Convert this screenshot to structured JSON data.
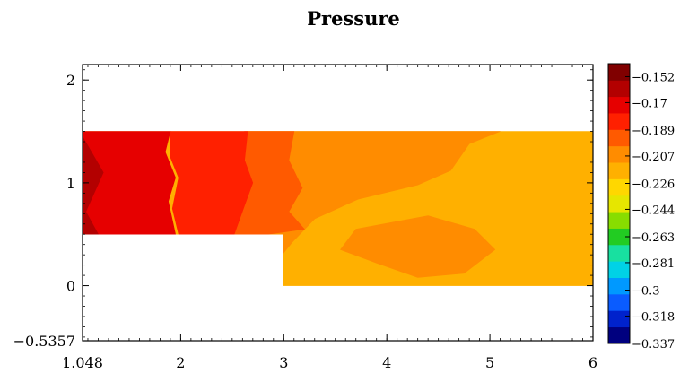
{
  "chart_data": {
    "type": "heatmap",
    "title": "Pressure",
    "xlabel": "",
    "ylabel": "",
    "xlim": [
      1.048,
      6
    ],
    "ylim": [
      -0.5357,
      2.15
    ],
    "x_ticks": [
      {
        "value": 1.048,
        "label": "1.048"
      },
      {
        "value": 2,
        "label": "2"
      },
      {
        "value": 3,
        "label": "3"
      },
      {
        "value": 4,
        "label": "4"
      },
      {
        "value": 5,
        "label": "5"
      },
      {
        "value": 6,
        "label": "6"
      }
    ],
    "y_ticks": [
      {
        "value": -0.5357,
        "label": "−0.5357"
      },
      {
        "value": 0,
        "label": "0"
      },
      {
        "value": 1,
        "label": "1"
      },
      {
        "value": 2,
        "label": "2"
      }
    ],
    "domain": {
      "description_points": [
        [
          1.048,
          0.5
        ],
        [
          3,
          0.5
        ],
        [
          3,
          0
        ],
        [
          6,
          0
        ],
        [
          6,
          1.5
        ],
        [
          1.048,
          1.5
        ]
      ]
    },
    "colorbar": {
      "min": -0.337,
      "max": -0.143,
      "labels": [
        {
          "value": -0.152,
          "label": "−0.152"
        },
        {
          "value": -0.17,
          "label": "−0.17"
        },
        {
          "value": -0.189,
          "label": "−0.189"
        },
        {
          "value": -0.207,
          "label": "−0.207"
        },
        {
          "value": -0.226,
          "label": "−0.226"
        },
        {
          "value": -0.244,
          "label": "−0.244"
        },
        {
          "value": -0.263,
          "label": "−0.263"
        },
        {
          "value": -0.281,
          "label": "−0.281"
        },
        {
          "value": -0.3,
          "label": "−0.3"
        },
        {
          "value": -0.318,
          "label": "−0.318"
        },
        {
          "value": -0.337,
          "label": "−0.337"
        }
      ],
      "colors": [
        "#00007f",
        "#0022cc",
        "#0a5cff",
        "#0099ff",
        "#00d2e6",
        "#18e0a0",
        "#22cc22",
        "#88dd00",
        "#e6e600",
        "#ffd700",
        "#ffb000",
        "#ff8c00",
        "#ff5a00",
        "#ff2000",
        "#e60000",
        "#b30000",
        "#800000"
      ]
    },
    "regions": [
      {
        "value": -0.215,
        "points": [
          [
            3.0,
            0.0
          ],
          [
            6.0,
            0.0
          ],
          [
            6.0,
            1.5
          ],
          [
            1.048,
            1.5
          ],
          [
            1.048,
            0.5
          ],
          [
            3.0,
            0.5
          ]
        ]
      },
      {
        "value": -0.205,
        "points": [
          [
            2.65,
            1.5
          ],
          [
            5.1,
            1.5
          ],
          [
            4.8,
            1.38
          ],
          [
            4.62,
            1.12
          ],
          [
            4.3,
            0.98
          ],
          [
            3.72,
            0.84
          ],
          [
            3.3,
            0.65
          ],
          [
            3.08,
            0.42
          ],
          [
            3.0,
            0.32
          ],
          [
            3.0,
            0.5
          ],
          [
            2.65,
            0.5
          ]
        ]
      },
      {
        "value": -0.205,
        "points": [
          [
            3.7,
            0.55
          ],
          [
            4.4,
            0.68
          ],
          [
            4.85,
            0.55
          ],
          [
            5.05,
            0.35
          ],
          [
            4.75,
            0.12
          ],
          [
            4.3,
            0.08
          ],
          [
            3.9,
            0.22
          ],
          [
            3.55,
            0.35
          ]
        ]
      },
      {
        "value": -0.195,
        "points": [
          [
            2.62,
            1.5
          ],
          [
            3.1,
            1.5
          ],
          [
            3.05,
            1.22
          ],
          [
            3.18,
            0.95
          ],
          [
            3.05,
            0.72
          ],
          [
            3.2,
            0.55
          ],
          [
            2.85,
            0.5
          ],
          [
            2.45,
            0.5
          ]
        ]
      },
      {
        "value": -0.222,
        "points": [
          [
            3.0,
            0.05
          ],
          [
            3.06,
            0.25
          ],
          [
            3.22,
            0.42
          ],
          [
            3.08,
            0.38
          ],
          [
            3.0,
            0.3
          ]
        ]
      },
      {
        "value": -0.182,
        "points": [
          [
            1.9,
            1.5
          ],
          [
            2.65,
            1.5
          ],
          [
            2.62,
            1.22
          ],
          [
            2.7,
            1.0
          ],
          [
            2.62,
            0.78
          ],
          [
            2.52,
            0.5
          ],
          [
            1.98,
            0.5
          ],
          [
            1.92,
            0.75
          ],
          [
            1.98,
            1.05
          ],
          [
            1.9,
            1.25
          ]
        ]
      },
      {
        "value": -0.171,
        "points": [
          [
            1.048,
            1.5
          ],
          [
            1.9,
            1.5
          ],
          [
            1.85,
            1.3
          ],
          [
            1.95,
            1.05
          ],
          [
            1.88,
            0.82
          ],
          [
            1.95,
            0.5
          ],
          [
            1.048,
            0.5
          ]
        ]
      },
      {
        "value": -0.162,
        "points": [
          [
            1.048,
            1.45
          ],
          [
            1.25,
            1.1
          ],
          [
            1.08,
            0.72
          ],
          [
            1.2,
            0.5
          ],
          [
            1.048,
            0.5
          ]
        ]
      }
    ]
  }
}
